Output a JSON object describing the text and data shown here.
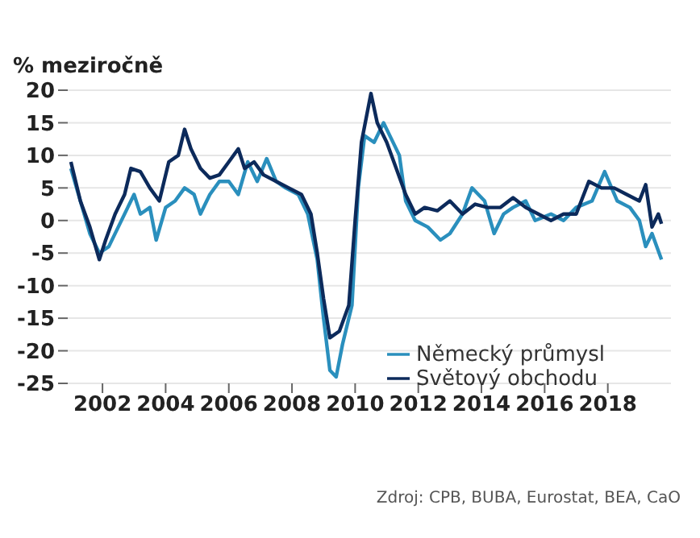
{
  "chart_data": {
    "type": "line",
    "ylabel": "% meziročně",
    "annotations": [
      "Zdroj: CPB, BUBA, Eurostat, BEA, CaO"
    ],
    "xlim": [
      2000.9,
      2020
    ],
    "xticks": [
      2002,
      2004,
      2006,
      2008,
      2010,
      2012,
      2014,
      2016,
      2018
    ],
    "ylim": [
      -25,
      20
    ],
    "yticks": [
      -25,
      -20,
      -15,
      -10,
      -5,
      0,
      5,
      10,
      15,
      20
    ],
    "grid": "y",
    "legend": "bottom right",
    "line_style": "solid",
    "marker": "none",
    "series": [
      {
        "name": "Německý průmysl",
        "color": "#2a8fbd",
        "x": [
          2001.0,
          2001.3,
          2001.6,
          2001.9,
          2002.2,
          2002.5,
          2002.8,
          2003.0,
          2003.2,
          2003.5,
          2003.7,
          2004.0,
          2004.3,
          2004.6,
          2004.9,
          2005.1,
          2005.4,
          2005.7,
          2006.0,
          2006.3,
          2006.6,
          2006.9,
          2007.2,
          2007.5,
          2007.8,
          2008.2,
          2008.5,
          2008.8,
          2009.0,
          2009.2,
          2009.4,
          2009.6,
          2009.9,
          2010.1,
          2010.3,
          2010.6,
          2010.9,
          2011.1,
          2011.4,
          2011.6,
          2011.9,
          2012.3,
          2012.7,
          2013.0,
          2013.4,
          2013.7,
          2014.1,
          2014.4,
          2014.7,
          2015.0,
          2015.4,
          2015.7,
          2016.2,
          2016.6,
          2017.0,
          2017.5,
          2017.9,
          2018.3,
          2018.7,
          2019.0,
          2019.2,
          2019.4,
          2019.7
        ],
        "values": [
          8,
          3,
          -2,
          -5,
          -4,
          -1,
          2,
          4,
          1,
          2,
          -3,
          2,
          3,
          5,
          4,
          1,
          4,
          6,
          6,
          4,
          9,
          6,
          9.5,
          6,
          5,
          4,
          1,
          -6,
          -15,
          -23,
          -24,
          -19,
          -13,
          5,
          13,
          12,
          15,
          13,
          10,
          3,
          0,
          -1,
          -3,
          -2,
          1,
          5,
          3,
          -2,
          1,
          2,
          3,
          0,
          1,
          0,
          2,
          3,
          7.5,
          3,
          2,
          0,
          -4,
          -2,
          -6
        ]
      },
      {
        "name": "Světový obchodu",
        "color": "#0c2a5b",
        "x": [
          2001.0,
          2001.3,
          2001.6,
          2001.9,
          2002.1,
          2002.4,
          2002.7,
          2002.9,
          2003.2,
          2003.5,
          2003.8,
          2004.1,
          2004.4,
          2004.6,
          2004.8,
          2005.1,
          2005.4,
          2005.7,
          2006.0,
          2006.3,
          2006.5,
          2006.8,
          2007.1,
          2007.5,
          2007.9,
          2008.3,
          2008.6,
          2008.8,
          2009.0,
          2009.2,
          2009.5,
          2009.8,
          2010.0,
          2010.2,
          2010.5,
          2010.7,
          2011.0,
          2011.3,
          2011.6,
          2011.9,
          2012.2,
          2012.6,
          2013.0,
          2013.4,
          2013.8,
          2014.2,
          2014.6,
          2015.0,
          2015.4,
          2015.8,
          2016.2,
          2016.6,
          2017.0,
          2017.4,
          2017.8,
          2018.2,
          2018.6,
          2019.0,
          2019.2,
          2019.4,
          2019.6,
          2019.7
        ],
        "values": [
          9,
          3,
          -1,
          -6,
          -3,
          1,
          4,
          8,
          7.5,
          5,
          3,
          9,
          10,
          14,
          11,
          8,
          6.5,
          7,
          9,
          11,
          8,
          9,
          7,
          6,
          5,
          4,
          1,
          -5,
          -12,
          -18,
          -17,
          -13,
          0,
          12,
          19.5,
          15,
          12,
          8,
          4,
          1,
          2,
          1.5,
          3,
          1,
          2.5,
          2,
          2,
          3.5,
          2,
          1,
          0,
          1,
          1,
          6,
          5,
          5,
          4,
          3,
          5.5,
          -1,
          1,
          -0.5
        ]
      }
    ]
  }
}
